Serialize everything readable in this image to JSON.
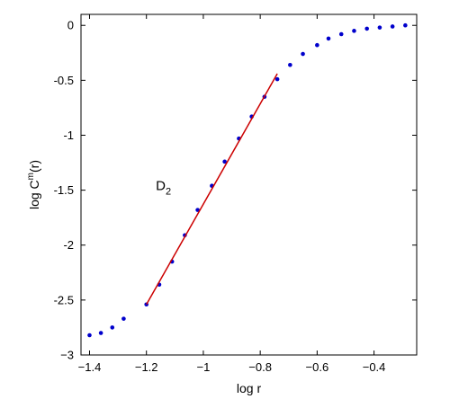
{
  "chart_data": {
    "type": "scatter",
    "xlabel": "log r",
    "ylabel_base": "log C",
    "ylabel_sup": "m",
    "ylabel_tail": "(r)",
    "xlim": [
      -1.43,
      -0.25
    ],
    "ylim": [
      -3,
      0.1
    ],
    "xticks": [
      -1.4,
      -1.2,
      -1,
      -0.8,
      -0.6,
      -0.4
    ],
    "xtick_labels": [
      "−1.4",
      "−1.2",
      "−1",
      "−0.8",
      "−0.6",
      "−0.4"
    ],
    "yticks": [
      0,
      -0.5,
      -1,
      -1.5,
      -2,
      -2.5,
      -3
    ],
    "ytick_labels": [
      "0",
      "-0.5",
      "-1",
      "-1.5",
      "-2",
      "-2.5",
      "−3"
    ],
    "grid": false,
    "series": [
      {
        "marker": "dot",
        "color": "#0000cc",
        "points": [
          [
            -1.4,
            -2.82
          ],
          [
            -1.36,
            -2.8
          ],
          [
            -1.32,
            -2.75
          ],
          [
            -1.28,
            -2.67
          ],
          [
            -1.2,
            -2.54
          ],
          [
            -1.155,
            -2.36
          ],
          [
            -1.11,
            -2.15
          ],
          [
            -1.065,
            -1.91
          ],
          [
            -1.02,
            -1.68
          ],
          [
            -0.97,
            -1.46
          ],
          [
            -0.925,
            -1.24
          ],
          [
            -0.875,
            -1.03
          ],
          [
            -0.83,
            -0.83
          ],
          [
            -0.785,
            -0.65
          ],
          [
            -0.74,
            -0.49
          ],
          [
            -0.695,
            -0.36
          ],
          [
            -0.65,
            -0.26
          ],
          [
            -0.6,
            -0.18
          ],
          [
            -0.56,
            -0.12
          ],
          [
            -0.515,
            -0.08
          ],
          [
            -0.47,
            -0.05
          ],
          [
            -0.425,
            -0.03
          ],
          [
            -0.38,
            -0.02
          ],
          [
            -0.335,
            -0.01
          ],
          [
            -0.29,
            0.0
          ]
        ]
      },
      {
        "marker": "line",
        "color": "#cc0000",
        "points": [
          [
            -1.2,
            -2.54
          ],
          [
            -0.74,
            -0.44
          ]
        ]
      }
    ],
    "annotation": {
      "base": "D",
      "sub": "2",
      "at": [
        -1.14,
        -1.5
      ]
    }
  }
}
